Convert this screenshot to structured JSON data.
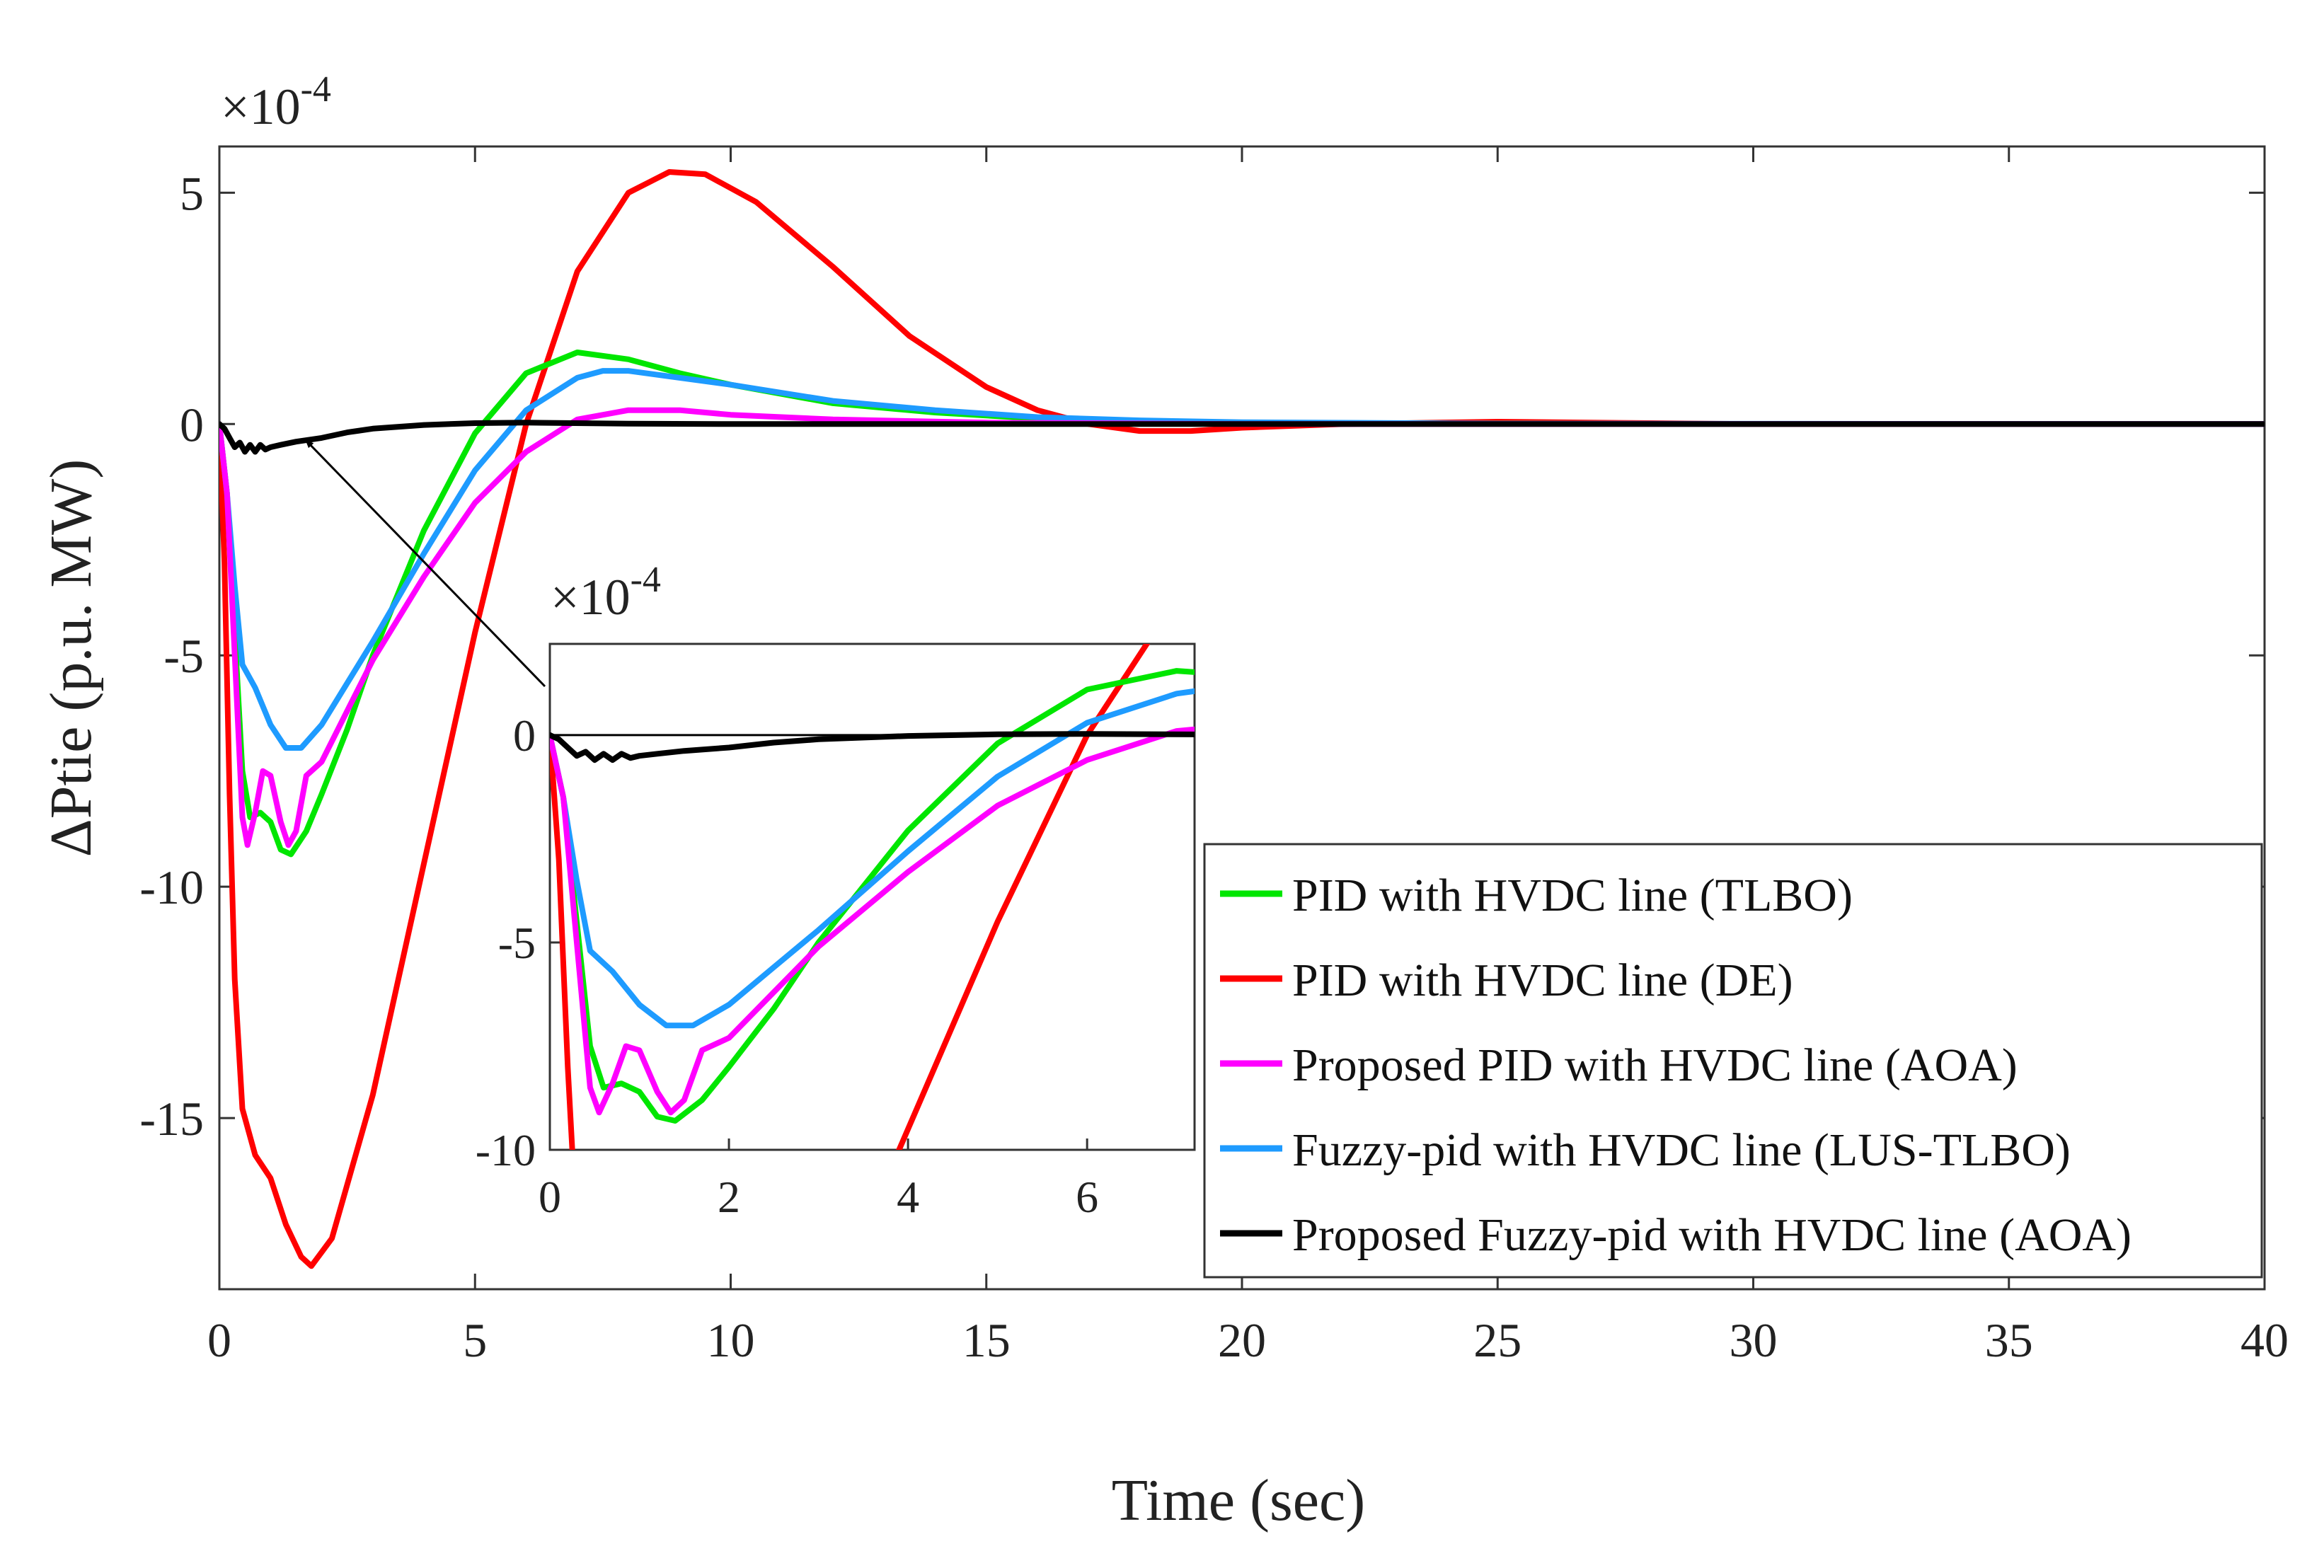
{
  "chart_data": {
    "type": "line",
    "xlabel": "Time (sec)",
    "ylabel": "ΔPtie (p.u. MW)",
    "y_multiplier": "×10",
    "y_multiplier_exp": "-4",
    "xlim": [
      0,
      40
    ],
    "ylim": [
      -18.7,
      6
    ],
    "x_ticks": [
      0,
      5,
      10,
      15,
      20,
      25,
      30,
      35,
      40
    ],
    "y_ticks": [
      -15,
      -10,
      -5,
      0,
      5
    ],
    "legend_position": "lower-right",
    "series": [
      {
        "name": "PID with HVDC line (TLBO)",
        "color": "#00e600",
        "points": [
          [
            0,
            0
          ],
          [
            0.15,
            -1.5
          ],
          [
            0.3,
            -4.5
          ],
          [
            0.45,
            -7.5
          ],
          [
            0.6,
            -8.5
          ],
          [
            0.8,
            -8.4
          ],
          [
            1.0,
            -8.6
          ],
          [
            1.2,
            -9.2
          ],
          [
            1.4,
            -9.3
          ],
          [
            1.7,
            -8.8
          ],
          [
            2.0,
            -8.0
          ],
          [
            2.5,
            -6.6
          ],
          [
            3.0,
            -5.0
          ],
          [
            4.0,
            -2.3
          ],
          [
            5.0,
            -0.2
          ],
          [
            6.0,
            1.1
          ],
          [
            7.0,
            1.55
          ],
          [
            8.0,
            1.4
          ],
          [
            9.0,
            1.1
          ],
          [
            10.0,
            0.85
          ],
          [
            12.0,
            0.45
          ],
          [
            14.0,
            0.25
          ],
          [
            16.0,
            0.12
          ],
          [
            18.0,
            0.07
          ],
          [
            20.0,
            0.03
          ],
          [
            25.0,
            0.01
          ],
          [
            30.0,
            0
          ],
          [
            40.0,
            0
          ]
        ]
      },
      {
        "name": "PID with HVDC line (DE)",
        "color": "#ff0000",
        "points": [
          [
            0,
            0
          ],
          [
            0.1,
            -3
          ],
          [
            0.2,
            -8
          ],
          [
            0.3,
            -12
          ],
          [
            0.45,
            -14.8
          ],
          [
            0.7,
            -15.8
          ],
          [
            1.0,
            -16.3
          ],
          [
            1.3,
            -17.3
          ],
          [
            1.6,
            -18
          ],
          [
            1.8,
            -18.2
          ],
          [
            2.2,
            -17.6
          ],
          [
            3.0,
            -14.5
          ],
          [
            4.0,
            -9.5
          ],
          [
            5.0,
            -4.5
          ],
          [
            6.0,
            0
          ],
          [
            7.0,
            3.3
          ],
          [
            8.0,
            5.0
          ],
          [
            8.8,
            5.45
          ],
          [
            9.5,
            5.4
          ],
          [
            10.5,
            4.8
          ],
          [
            12.0,
            3.4
          ],
          [
            13.5,
            1.9
          ],
          [
            15.0,
            0.8
          ],
          [
            16.0,
            0.3
          ],
          [
            17.0,
            0
          ],
          [
            18.0,
            -0.15
          ],
          [
            19.0,
            -0.15
          ],
          [
            20.0,
            -0.08
          ],
          [
            22.0,
            0
          ],
          [
            25.0,
            0.05
          ],
          [
            28.0,
            0.02
          ],
          [
            30.0,
            0
          ],
          [
            40.0,
            0
          ]
        ]
      },
      {
        "name": "Proposed PID with HVDC line (AOA)",
        "color": "#ff00ff",
        "points": [
          [
            0,
            0
          ],
          [
            0.15,
            -1.5
          ],
          [
            0.3,
            -5
          ],
          [
            0.45,
            -8.5
          ],
          [
            0.55,
            -9.1
          ],
          [
            0.7,
            -8.4
          ],
          [
            0.85,
            -7.5
          ],
          [
            1.0,
            -7.6
          ],
          [
            1.2,
            -8.6
          ],
          [
            1.35,
            -9.1
          ],
          [
            1.5,
            -8.8
          ],
          [
            1.7,
            -7.6
          ],
          [
            2.0,
            -7.3
          ],
          [
            2.5,
            -6.2
          ],
          [
            3.0,
            -5.1
          ],
          [
            4.0,
            -3.3
          ],
          [
            5.0,
            -1.7
          ],
          [
            6.0,
            -0.6
          ],
          [
            7.0,
            0.1
          ],
          [
            8.0,
            0.3
          ],
          [
            9.0,
            0.3
          ],
          [
            10.0,
            0.2
          ],
          [
            12.0,
            0.1
          ],
          [
            15.0,
            0.03
          ],
          [
            20.0,
            0
          ],
          [
            40.0,
            0
          ]
        ]
      },
      {
        "name": "Fuzzy-pid with HVDC line (LUS-TLBO)",
        "color": "#1e9bff",
        "points": [
          [
            0,
            0
          ],
          [
            0.15,
            -1.5
          ],
          [
            0.3,
            -3.5
          ],
          [
            0.45,
            -5.2
          ],
          [
            0.7,
            -5.7
          ],
          [
            1.0,
            -6.5
          ],
          [
            1.3,
            -7.0
          ],
          [
            1.6,
            -7.0
          ],
          [
            2.0,
            -6.5
          ],
          [
            2.5,
            -5.6
          ],
          [
            3.0,
            -4.7
          ],
          [
            4.0,
            -2.8
          ],
          [
            5.0,
            -1.0
          ],
          [
            6.0,
            0.3
          ],
          [
            7.0,
            1.0
          ],
          [
            7.5,
            1.15
          ],
          [
            8.0,
            1.15
          ],
          [
            9.0,
            1.0
          ],
          [
            10.0,
            0.85
          ],
          [
            12.0,
            0.5
          ],
          [
            14.0,
            0.3
          ],
          [
            16.0,
            0.15
          ],
          [
            18.0,
            0.08
          ],
          [
            20.0,
            0.04
          ],
          [
            25.0,
            0.01
          ],
          [
            40.0,
            0
          ]
        ]
      },
      {
        "name": "Proposed Fuzzy-pid with HVDC line (AOA)",
        "color": "#000000",
        "points": [
          [
            0,
            0
          ],
          [
            0.1,
            -0.1
          ],
          [
            0.2,
            -0.3
          ],
          [
            0.3,
            -0.5
          ],
          [
            0.4,
            -0.4
          ],
          [
            0.5,
            -0.6
          ],
          [
            0.6,
            -0.45
          ],
          [
            0.7,
            -0.6
          ],
          [
            0.8,
            -0.45
          ],
          [
            0.9,
            -0.55
          ],
          [
            1.0,
            -0.5
          ],
          [
            1.2,
            -0.45
          ],
          [
            1.5,
            -0.38
          ],
          [
            2.0,
            -0.3
          ],
          [
            2.5,
            -0.18
          ],
          [
            3.0,
            -0.1
          ],
          [
            4.0,
            -0.02
          ],
          [
            5.0,
            0.02
          ],
          [
            6.0,
            0.03
          ],
          [
            8.0,
            0.01
          ],
          [
            10.0,
            0
          ],
          [
            40.0,
            0
          ]
        ]
      }
    ],
    "inset": {
      "xlim": [
        0,
        7.2
      ],
      "ylim": [
        -10,
        2.2
      ],
      "x_ticks": [
        0,
        2,
        4,
        6
      ],
      "y_ticks": [
        -10,
        -5,
        0
      ],
      "y_multiplier": "×10",
      "y_multiplier_exp": "-4",
      "zero_reference_line": true
    }
  }
}
